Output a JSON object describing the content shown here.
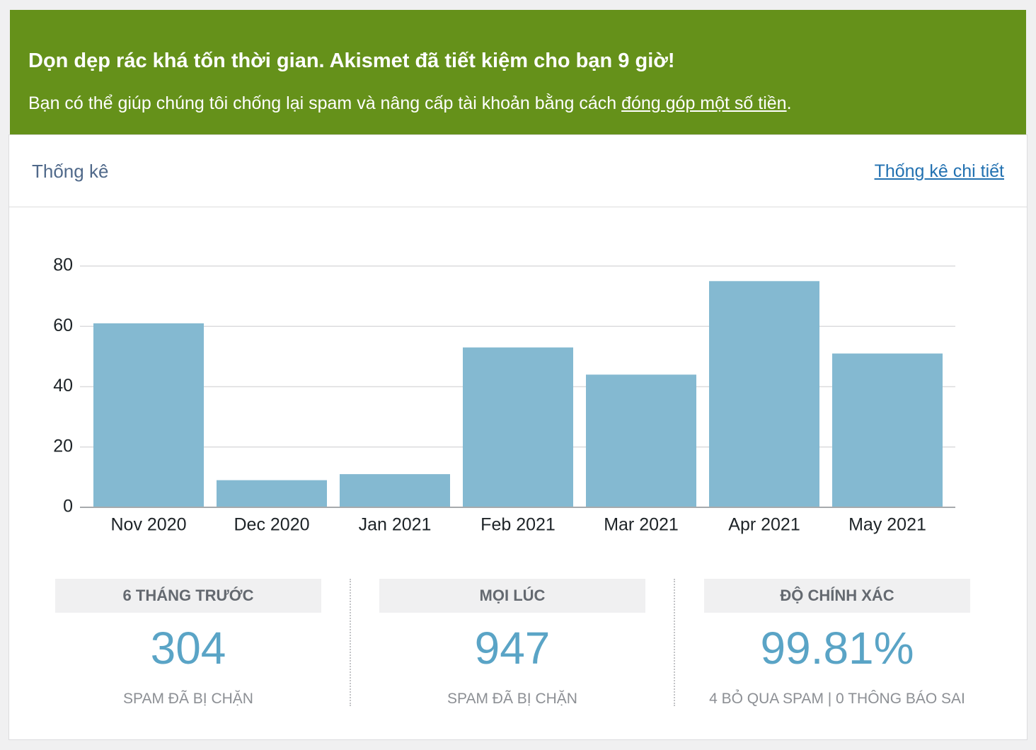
{
  "notice": {
    "title": "Dọn dẹp rác khá tốn thời gian. Akismet đã tiết kiệm cho bạn 9 giờ!",
    "text_before": "Bạn có thể giúp chúng tôi chống lại spam và nâng cấp tài khoản bằng cách ",
    "link": "đóng góp một số tiền",
    "text_after": "."
  },
  "panel": {
    "title": "Thống kê",
    "link": "Thống kê chi tiết"
  },
  "chart_data": {
    "type": "bar",
    "categories": [
      "Nov 2020",
      "Dec 2020",
      "Jan 2021",
      "Feb 2021",
      "Mar 2021",
      "Apr 2021",
      "May 2021"
    ],
    "values": [
      61,
      9,
      11,
      53,
      44,
      75,
      51
    ],
    "color": "#84b9d1",
    "ylim": [
      0,
      80
    ],
    "yticks": [
      0,
      20,
      40,
      60,
      80
    ],
    "grid": true
  },
  "stats": [
    {
      "label": "6 THÁNG TRƯỚC",
      "value": "304",
      "sublabel": "SPAM ĐÃ BỊ CHẶN"
    },
    {
      "label": "MỌI LÚC",
      "value": "947",
      "sublabel": "SPAM ĐÃ BỊ CHẶN"
    },
    {
      "label": "ĐỘ CHÍNH XÁC",
      "value": "99.81%",
      "sublabel": "4 BỎ QUA SPAM | 0 THÔNG BÁO SAI"
    }
  ]
}
